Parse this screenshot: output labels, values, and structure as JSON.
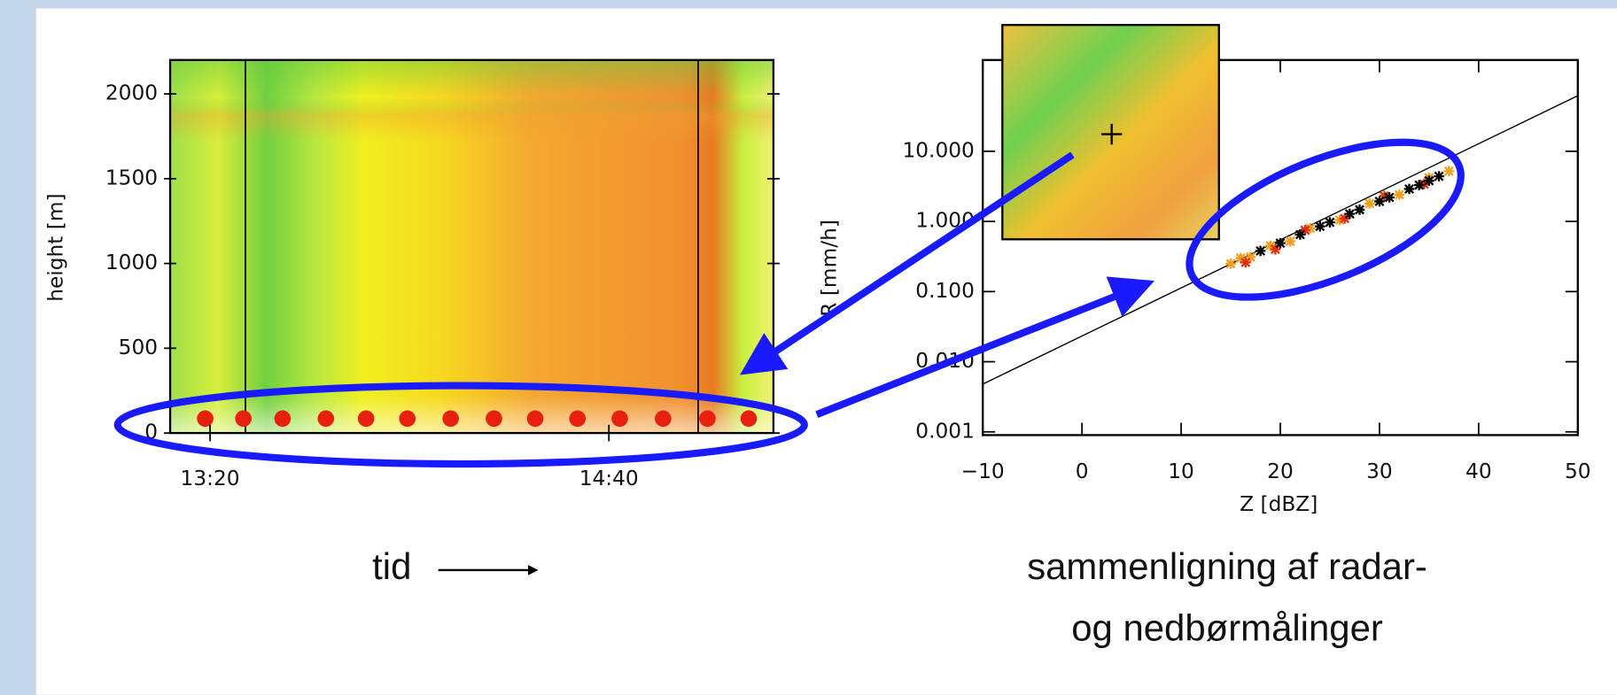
{
  "chart_data": [
    {
      "type": "heatmap",
      "xlabel": "tid",
      "ylabel": "height [m]",
      "xlim": [
        "13:12",
        "15:13"
      ],
      "xticks": [
        "13:20",
        "14:40"
      ],
      "ylim": [
        0,
        2200
      ],
      "yticks": [
        0,
        500,
        1000,
        1500,
        2000
      ]
    },
    {
      "type": "scatter",
      "xlabel": "Z [dBZ]",
      "ylabel": "R [mm/h]",
      "caption": [
        "sammenligning af radar-",
        "og nedbørmålinger"
      ],
      "log_y": true,
      "xlim": [
        -10,
        50
      ],
      "xticks": [
        {
          "value": -10,
          "label": "−10"
        },
        0,
        10,
        20,
        30,
        40,
        50
      ],
      "ylim": [
        0.0009,
        200
      ],
      "yticks": [
        {
          "value": 0.001,
          "label": "0.001"
        },
        {
          "value": 0.01,
          "label": "0.010"
        },
        {
          "value": 0.1,
          "label": "0.100"
        },
        {
          "value": 1,
          "label": "1.000"
        },
        {
          "value": 10,
          "label": "10.000"
        }
      ],
      "line": {
        "color": "#000000",
        "x": [
          -10,
          50
        ],
        "values": [
          0.0048,
          62
        ]
      },
      "series": [
        {
          "color": "#f0a020",
          "x": [
            15,
            16,
            17,
            19,
            21,
            23,
            26,
            29,
            32,
            35,
            37
          ],
          "values": [
            0.25,
            0.3,
            0.31,
            0.45,
            0.52,
            0.8,
            1.05,
            1.8,
            2.4,
            4.2,
            5.2
          ]
        },
        {
          "color": "#e03010",
          "x": [
            16.5,
            19.5,
            22.5,
            26.5,
            30.5,
            34.5
          ],
          "values": [
            0.26,
            0.4,
            0.75,
            1.1,
            2.3,
            3.4
          ]
        },
        {
          "color": "#000000",
          "x": [
            18,
            20,
            22,
            24,
            25,
            27,
            28,
            30,
            31,
            33,
            34,
            35,
            36
          ],
          "values": [
            0.38,
            0.49,
            0.65,
            0.85,
            0.97,
            1.28,
            1.47,
            1.93,
            2.2,
            2.9,
            3.3,
            3.8,
            4.4
          ]
        }
      ]
    }
  ]
}
